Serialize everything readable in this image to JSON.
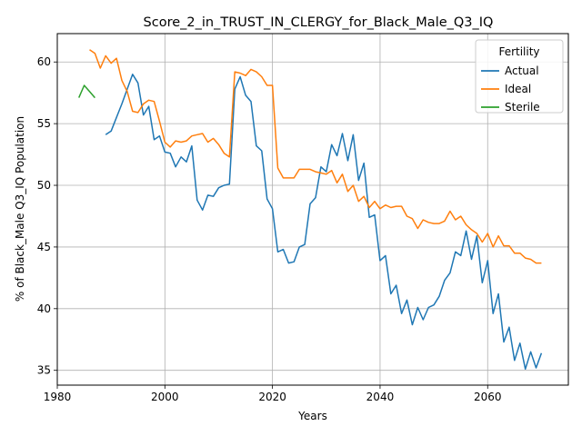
{
  "chart_data": {
    "type": "line",
    "title": "Score_2_in_TRUST_IN_CLERGY_for_Black_Male_Q3_IQ",
    "xlabel": "Years",
    "ylabel": "% of Black_Male Q3_IQ Population",
    "xlim": [
      1980,
      2075
    ],
    "ylim": [
      33.8,
      62.3
    ],
    "xticks": [
      1980,
      2000,
      2020,
      2040,
      2060
    ],
    "yticks": [
      35,
      40,
      45,
      50,
      55,
      60
    ],
    "grid": true,
    "legend": {
      "title": "Fertility",
      "placement": "top-right"
    },
    "series": [
      {
        "name": "Actual",
        "color": "#1f77b4",
        "x": [
          1989,
          1990,
          1991,
          1992,
          1993,
          1994,
          1995,
          1996,
          1997,
          1998,
          1999,
          2000,
          2001,
          2002,
          2003,
          2004,
          2005,
          2006,
          2007,
          2008,
          2009,
          2010,
          2011,
          2012,
          2013,
          2014,
          2015,
          2016,
          2017,
          2018,
          2019,
          2020,
          2021,
          2022,
          2023,
          2024,
          2025,
          2026,
          2027,
          2028,
          2029,
          2030,
          2031,
          2032,
          2033,
          2034,
          2035,
          2036,
          2037,
          2038,
          2039,
          2040,
          2041,
          2042,
          2043,
          2044,
          2045,
          2046,
          2047,
          2048,
          2049,
          2050,
          2051,
          2052,
          2053,
          2054,
          2055,
          2056,
          2057,
          2058,
          2059,
          2060,
          2061,
          2062,
          2063,
          2064,
          2065,
          2066,
          2067,
          2068,
          2069,
          2070
        ],
        "values": [
          54.1,
          54.4,
          55.5,
          56.6,
          57.8,
          59.0,
          58.3,
          55.7,
          56.4,
          53.7,
          54.0,
          52.7,
          52.6,
          51.5,
          52.3,
          51.9,
          53.2,
          48.8,
          48.0,
          49.2,
          49.1,
          49.8,
          50.0,
          50.1,
          57.8,
          58.8,
          57.3,
          56.8,
          53.2,
          52.8,
          48.9,
          48.1,
          44.6,
          44.8,
          43.7,
          43.8,
          45.0,
          45.2,
          48.5,
          49.0,
          51.5,
          51.1,
          53.3,
          52.4,
          54.2,
          52.0,
          54.1,
          50.4,
          51.8,
          47.4,
          47.6,
          43.9,
          44.3,
          41.2,
          41.9,
          39.6,
          40.7,
          38.7,
          40.1,
          39.1,
          40.1,
          40.3,
          41.0,
          42.3,
          42.9,
          44.6,
          44.3,
          46.3,
          44.0,
          45.9,
          42.1,
          43.9,
          39.6,
          41.2,
          37.3,
          38.5,
          35.8,
          37.2,
          35.1,
          36.5,
          35.2,
          36.4
        ]
      },
      {
        "name": "Ideal",
        "color": "#ff7f0e",
        "x": [
          1986,
          1987,
          1988,
          1989,
          1990,
          1991,
          1992,
          1993,
          1994,
          1995,
          1996,
          1997,
          1998,
          1999,
          2000,
          2001,
          2002,
          2003,
          2004,
          2005,
          2006,
          2007,
          2008,
          2009,
          2010,
          2011,
          2012,
          2013,
          2014,
          2015,
          2016,
          2017,
          2018,
          2019,
          2020,
          2021,
          2022,
          2023,
          2024,
          2025,
          2026,
          2027,
          2028,
          2029,
          2030,
          2031,
          2032,
          2033,
          2034,
          2035,
          2036,
          2037,
          2038,
          2039,
          2040,
          2041,
          2042,
          2043,
          2044,
          2045,
          2046,
          2047,
          2048,
          2049,
          2050,
          2051,
          2052,
          2053,
          2054,
          2055,
          2056,
          2057,
          2058,
          2059,
          2060,
          2061,
          2062,
          2063,
          2064,
          2065,
          2066,
          2067,
          2068,
          2069,
          2070
        ],
        "values": [
          61.0,
          60.7,
          59.5,
          60.5,
          59.9,
          60.3,
          58.5,
          57.6,
          56.0,
          55.9,
          56.6,
          56.9,
          56.8,
          55.2,
          53.5,
          53.1,
          53.6,
          53.5,
          53.6,
          54.0,
          54.1,
          54.2,
          53.5,
          53.8,
          53.3,
          52.6,
          52.3,
          59.2,
          59.1,
          58.9,
          59.4,
          59.2,
          58.8,
          58.1,
          58.1,
          51.4,
          50.6,
          50.6,
          50.6,
          51.3,
          51.3,
          51.3,
          51.1,
          51.0,
          50.9,
          51.2,
          50.2,
          50.9,
          49.5,
          50.0,
          48.7,
          49.1,
          48.2,
          48.7,
          48.1,
          48.4,
          48.2,
          48.3,
          48.3,
          47.5,
          47.3,
          46.5,
          47.2,
          47.0,
          46.9,
          46.9,
          47.1,
          47.9,
          47.2,
          47.5,
          46.8,
          46.4,
          46.1,
          45.4,
          46.1,
          45.0,
          45.9,
          45.1,
          45.1,
          44.5,
          44.5,
          44.1,
          44.0,
          43.7,
          43.7
        ]
      },
      {
        "name": "Sterile",
        "color": "#2ca02c",
        "x": [
          1984,
          1985,
          1986,
          1987
        ],
        "values": [
          57.1,
          58.1,
          57.6,
          57.1
        ]
      }
    ]
  }
}
